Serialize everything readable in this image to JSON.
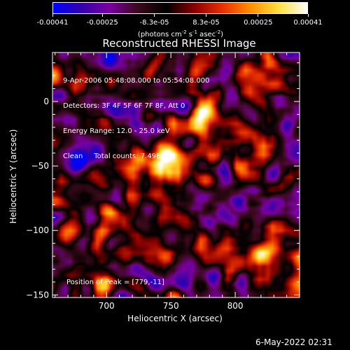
{
  "colorbar": {
    "tick_labels": [
      "-0.00041",
      "-0.00025",
      "-8.3e-05",
      "8.3e-05",
      "0.00025",
      "0.00041"
    ],
    "tick_values": [
      -0.00041,
      -0.00025,
      -8.3e-05,
      8.3e-05,
      0.00025,
      0.00041
    ],
    "units_text": "(photons cm",
    "units_sup1": "-2",
    "units_mid1": " s",
    "units_sup2": "-1",
    "units_mid2": " asec",
    "units_sup3": "-2",
    "units_end": ")",
    "colors": [
      "#0000ff",
      "#3300aa",
      "#7a00a0",
      "#3a0a1a",
      "#000000",
      "#8a0000",
      "#e83000",
      "#ff9000",
      "#ffe040",
      "#ffffff"
    ]
  },
  "info": {
    "time_range": "9-Apr-2006 05:48:08.000 to 05:54:08.000",
    "detectors": "Detectors: 3F 4F 5F 6F 7F 8F, Att 0",
    "energy_range": "Energy Range: 12.0 - 25.0 keV",
    "clean_counts": "Clean     Total counts: 7.49E+03",
    "peak": "Position of Peak = [779,-11]"
  },
  "chart_data": {
    "type": "heatmap",
    "title": "Reconstructed RHESSI Image",
    "xlabel": "Heliocentric X (arcsec)",
    "ylabel": "Heliocentric Y (arcsec)",
    "xlim": [
      658,
      850
    ],
    "ylim": [
      -152,
      38
    ],
    "x_ticks": [
      700,
      750,
      800
    ],
    "y_ticks": [
      0,
      -50,
      -100,
      -150
    ],
    "x_tick_labels": [
      "700",
      "750",
      "800"
    ],
    "y_tick_labels": [
      "0",
      "−50",
      "−100",
      "−150"
    ],
    "value_range": [
      -0.00041,
      0.00041
    ],
    "peak_position": [
      779,
      -11
    ]
  },
  "footer": {
    "timestamp": "6-May-2022 02:31"
  }
}
